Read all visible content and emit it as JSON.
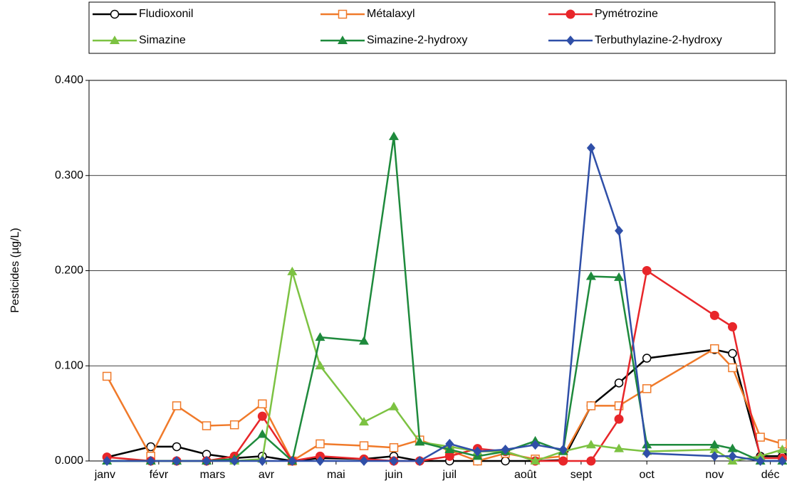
{
  "chart_data": {
    "type": "line",
    "y_label": "Pesticides  (µg/L)",
    "xlim": [
      0,
      350
    ],
    "xticks": [
      {
        "value": 8,
        "label": "janv"
      },
      {
        "value": 35,
        "label": "févr"
      },
      {
        "value": 62,
        "label": "mars"
      },
      {
        "value": 89,
        "label": "avr"
      },
      {
        "value": 124,
        "label": "mai"
      },
      {
        "value": 153,
        "label": "juin"
      },
      {
        "value": 181,
        "label": "juil"
      },
      {
        "value": 219,
        "label": "août"
      },
      {
        "value": 247,
        "label": "sept"
      },
      {
        "value": 280,
        "label": "oct"
      },
      {
        "value": 314,
        "label": "nov"
      },
      {
        "value": 342,
        "label": "déc"
      }
    ],
    "ylim": [
      0,
      0.4
    ],
    "yticks": [
      {
        "value": 0,
        "label": "0.000"
      },
      {
        "value": 0.1,
        "label": "0.100"
      },
      {
        "value": 0.2,
        "label": "0.200"
      },
      {
        "value": 0.3,
        "label": "0.300"
      },
      {
        "value": 0.4,
        "label": "0.400"
      }
    ],
    "grid": true,
    "legend": "top",
    "x": [
      9,
      31,
      44,
      59,
      73,
      87,
      102,
      116,
      138,
      153,
      166,
      181,
      195,
      209,
      224,
      238,
      252,
      266,
      280,
      314,
      323,
      337,
      348
    ],
    "series": [
      {
        "name": "Fludioxonil",
        "color": "#000000",
        "marker": "circle-open",
        "values": [
          0.004,
          0.015,
          0.015,
          0.007,
          0.003,
          0.005,
          0.0,
          0.003,
          0.002,
          0.005,
          0.0,
          0.0,
          0.0,
          0.0,
          0.0,
          0.001,
          0.058,
          0.082,
          0.108,
          0.117,
          0.113,
          0.005,
          0.005
        ]
      },
      {
        "name": "Métalaxyl",
        "color": "#f07a2a",
        "marker": "square-open",
        "values": [
          0.089,
          0.005,
          0.058,
          0.037,
          0.038,
          0.06,
          0.0,
          0.018,
          0.016,
          0.014,
          0.022,
          0.011,
          0.0,
          0.008,
          0.002,
          0.005,
          0.058,
          0.058,
          0.076,
          0.118,
          0.098,
          0.025,
          0.018
        ]
      },
      {
        "name": "Pymétrozine",
        "color": "#e8262a",
        "marker": "circle",
        "values": [
          0.004,
          0.0,
          0.0,
          0.0,
          0.005,
          0.047,
          0.0,
          0.005,
          0.002,
          0.0,
          0.0,
          0.005,
          0.013,
          0.01,
          0.0,
          0.0,
          0.0,
          0.044,
          0.2,
          0.153,
          0.141,
          0.003,
          0.003
        ]
      },
      {
        "name": "Simazine",
        "color": "#7cc242",
        "marker": "triangle",
        "values": [
          0.0,
          0.0,
          0.0,
          0.0,
          0.0,
          0.002,
          0.199,
          0.1,
          0.041,
          0.057,
          0.02,
          0.015,
          0.01,
          0.01,
          0.0,
          0.01,
          0.017,
          0.013,
          0.01,
          0.012,
          0.0,
          0.005,
          0.012
        ]
      },
      {
        "name": "Simazine-2-hydroxy",
        "color": "#1e8a3c",
        "marker": "triangle",
        "values": [
          0.0,
          0.0,
          0.0,
          0.0,
          0.002,
          0.028,
          0.0,
          0.13,
          0.126,
          0.341,
          0.02,
          0.012,
          0.005,
          0.01,
          0.021,
          0.01,
          0.194,
          0.193,
          0.017,
          0.017,
          0.013,
          0.0,
          0.0
        ]
      },
      {
        "name": "Terbuthylazine-2-hydroxy",
        "color": "#2f4fa8",
        "marker": "diamond",
        "values": [
          0.0,
          0.0,
          0.0,
          0.0,
          0.0,
          0.0,
          0.0,
          0.0,
          0.0,
          0.0,
          0.0,
          0.018,
          0.01,
          0.012,
          0.017,
          0.012,
          0.329,
          0.242,
          0.008,
          0.005,
          0.005,
          0.0,
          0.0
        ]
      }
    ]
  }
}
